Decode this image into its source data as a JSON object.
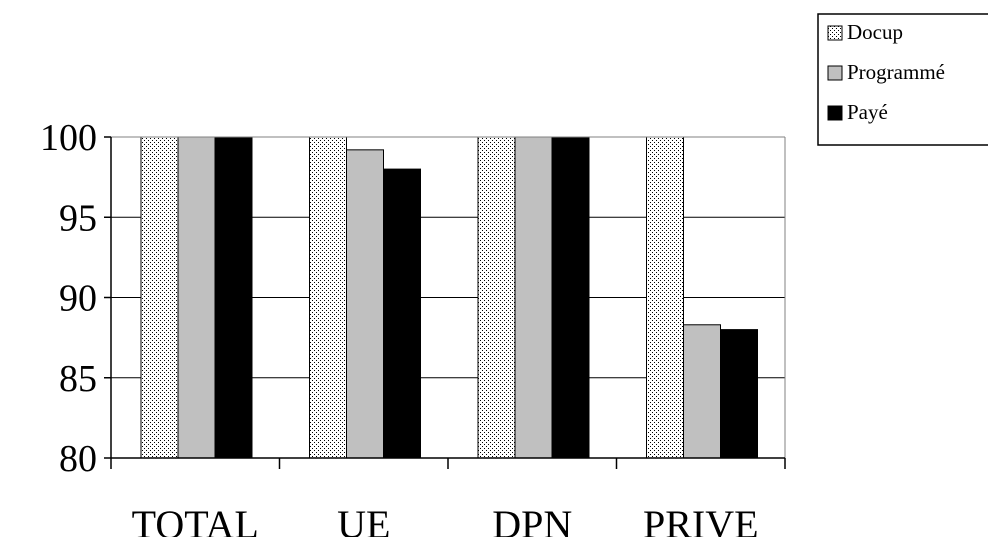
{
  "chart_data": {
    "type": "bar",
    "title": "",
    "xlabel": "",
    "ylabel": "",
    "categories": [
      "TOTAL",
      "UE",
      "DPN",
      "PRIVE"
    ],
    "series": [
      {
        "name": "Docup",
        "values": [
          100,
          100,
          100,
          100
        ],
        "fill": "dotted",
        "color": "#ffffff"
      },
      {
        "name": "Programmé",
        "values": [
          100,
          99.2,
          100,
          88.3
        ],
        "fill": "solid",
        "color": "#c0c0c0"
      },
      {
        "name": "Payé",
        "values": [
          100,
          98,
          100,
          88
        ],
        "fill": "solid",
        "color": "#000000"
      }
    ],
    "ylim": [
      80,
      100
    ],
    "yticks": [
      80,
      85,
      90,
      95,
      100
    ],
    "grid": true,
    "legend_position": "top-right"
  }
}
